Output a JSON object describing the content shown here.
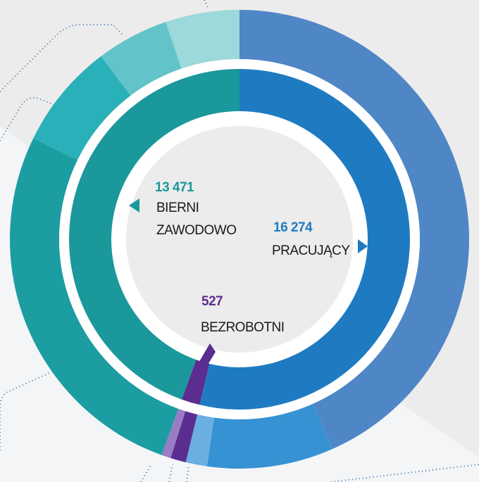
{
  "chart_data": {
    "type": "donut",
    "categories": [
      "PRACUJĄCY",
      "BEZROBOTNI",
      "BIERNI ZAWODOWO"
    ],
    "values": [
      16274,
      527,
      13471
    ],
    "value_labels": [
      "16 274",
      "527",
      "13 471"
    ],
    "colors": [
      "#1f7bc1",
      "#5b2d91",
      "#1a989c"
    ],
    "outer_values": [
      13120,
      2700,
      454,
      330,
      197,
      8100,
      2250,
      1545,
      1576
    ],
    "outer_colors": [
      "#4f86c6",
      "#3792d3",
      "#6aaee2",
      "#5b2d91",
      "#9a7cc4",
      "#1c9da2",
      "#2ab0b8",
      "#62c4c8",
      "#9dd8da"
    ]
  }
}
